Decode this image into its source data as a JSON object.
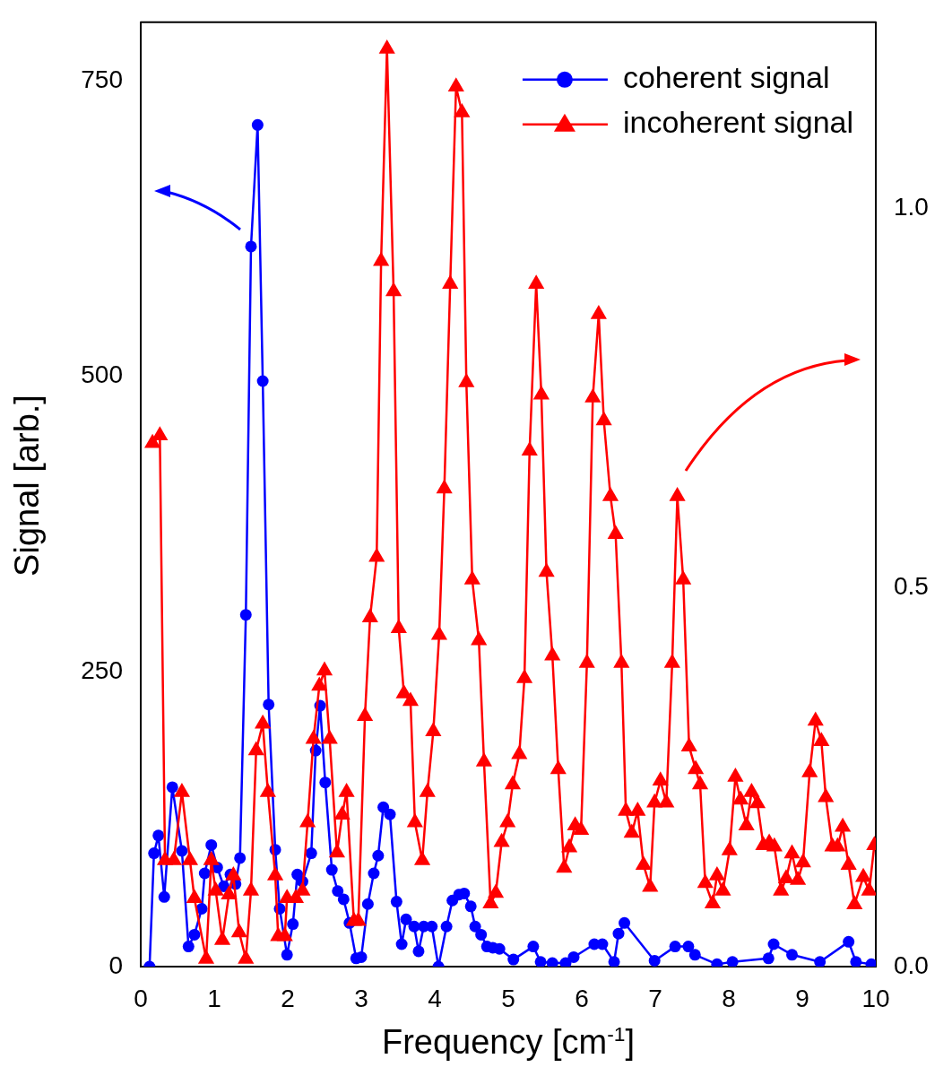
{
  "chart_data": {
    "type": "line",
    "xlabel": "Frequency [cm$^{-1}$]",
    "ylabel": "Signal [arb.]",
    "xlim": [
      0,
      10
    ],
    "xticks": [
      0,
      1,
      2,
      3,
      4,
      5,
      6,
      7,
      8,
      9,
      10
    ],
    "ylim": [
      0,
      800
    ],
    "yticks": [
      0,
      250,
      500,
      750
    ],
    "y2lim": [
      0,
      1.245
    ],
    "y2ticks": [
      {
        "value": 0,
        "label": "0.0"
      },
      {
        "value": 0.5,
        "label": "0.5"
      },
      {
        "value": 1,
        "label": "1.0"
      }
    ],
    "grid": false,
    "legend": "top right",
    "line_style": "solid",
    "series": [
      {
        "name": "coherent signal",
        "color": "#0000ff",
        "marker": "circle",
        "x": [
          0.12,
          0.18,
          0.24,
          0.32,
          0.43,
          0.56,
          0.65,
          0.73,
          0.83,
          0.87,
          0.96,
          1.04,
          1.13,
          1.22,
          1.29,
          1.35,
          1.43,
          1.5,
          1.59,
          1.66,
          1.74,
          1.83,
          1.89,
          1.99,
          2.07,
          2.13,
          2.2,
          2.32,
          2.38,
          2.44,
          2.51,
          2.6,
          2.68,
          2.76,
          2.84,
          2.93,
          3.0,
          3.09,
          3.17,
          3.23,
          3.3,
          3.39,
          3.48,
          3.55,
          3.61,
          3.72,
          3.78,
          3.85,
          3.96,
          4.05,
          4.16,
          4.24,
          4.33,
          4.4,
          4.49,
          4.55,
          4.63,
          4.71,
          4.79,
          4.88,
          5.07,
          5.34,
          5.44,
          5.6,
          5.78,
          5.89,
          6.17,
          6.28,
          6.44,
          6.5,
          6.58,
          6.99,
          7.27,
          7.45,
          7.54,
          7.84,
          8.05,
          8.54,
          8.61,
          8.86,
          9.24,
          9.63,
          9.73,
          9.94
        ],
        "values": [
          0,
          96,
          111,
          59,
          152,
          98,
          17,
          27,
          49,
          79,
          103,
          84,
          68,
          78,
          70,
          92,
          298,
          610,
          713,
          496,
          222,
          99,
          49,
          10,
          36,
          78,
          72,
          96,
          183,
          221,
          156,
          82,
          64,
          57,
          37,
          7,
          8,
          53,
          79,
          94,
          135,
          129,
          55,
          19,
          40,
          34,
          13,
          34,
          34,
          0,
          34,
          56,
          61,
          62,
          51,
          34,
          27,
          17,
          16,
          15,
          6,
          17,
          4,
          3,
          3,
          8,
          19,
          19,
          4,
          28,
          37,
          5,
          17,
          17,
          10,
          2,
          4,
          7,
          19,
          10,
          4,
          21,
          4,
          2
        ]
      },
      {
        "name": "incoherent signal",
        "color": "#ff0000",
        "marker": "triangle",
        "axis": "y2",
        "x": [
          0.16,
          0.26,
          0.33,
          0.45,
          0.56,
          0.67,
          0.73,
          0.89,
          0.96,
          1.02,
          1.11,
          1.2,
          1.26,
          1.34,
          1.43,
          1.5,
          1.57,
          1.66,
          1.73,
          1.83,
          1.87,
          1.96,
          1.99,
          2.11,
          2.2,
          2.27,
          2.35,
          2.43,
          2.5,
          2.57,
          2.67,
          2.74,
          2.8,
          2.9,
          2.96,
          3.05,
          3.12,
          3.21,
          3.27,
          3.35,
          3.44,
          3.51,
          3.58,
          3.67,
          3.73,
          3.83,
          3.9,
          3.98,
          4.06,
          4.13,
          4.21,
          4.29,
          4.37,
          4.43,
          4.51,
          4.6,
          4.67,
          4.76,
          4.83,
          4.91,
          4.99,
          5.06,
          5.15,
          5.22,
          5.29,
          5.38,
          5.45,
          5.52,
          5.6,
          5.68,
          5.76,
          5.83,
          5.91,
          5.99,
          6.07,
          6.15,
          6.23,
          6.3,
          6.39,
          6.46,
          6.54,
          6.6,
          6.68,
          6.76,
          6.84,
          6.93,
          6.99,
          7.07,
          7.15,
          7.23,
          7.3,
          7.38,
          7.46,
          7.55,
          7.61,
          7.68,
          7.78,
          7.84,
          7.92,
          8.01,
          8.09,
          8.16,
          8.24,
          8.31,
          8.39,
          8.47,
          8.55,
          8.62,
          8.71,
          8.78,
          8.86,
          8.94,
          9.01,
          9.1,
          9.18,
          9.26,
          9.32,
          9.41,
          9.48,
          9.55,
          9.63,
          9.71,
          9.83,
          9.91,
          9.98
        ],
        "values": [
          0.69,
          0.7,
          0.14,
          0.14,
          0.23,
          0.14,
          0.09,
          0.01,
          0.14,
          0.1,
          0.035,
          0.095,
          0.12,
          0.045,
          0.01,
          0.1,
          0.285,
          0.32,
          0.23,
          0.12,
          0.04,
          0.04,
          0.09,
          0.09,
          0.1,
          0.19,
          0.3,
          0.37,
          0.39,
          0.3,
          0.15,
          0.2,
          0.23,
          0.06,
          0.06,
          0.33,
          0.46,
          0.54,
          0.93,
          1.21,
          0.89,
          0.446,
          0.36,
          0.35,
          0.19,
          0.14,
          0.23,
          0.31,
          0.437,
          0.63,
          0.9,
          1.16,
          1.126,
          0.77,
          0.51,
          0.43,
          0.27,
          0.083,
          0.097,
          0.164,
          0.19,
          0.24,
          0.28,
          0.38,
          0.68,
          0.9,
          0.754,
          0.52,
          0.41,
          0.26,
          0.13,
          0.157,
          0.186,
          0.18,
          0.4,
          0.75,
          0.86,
          0.72,
          0.62,
          0.57,
          0.4,
          0.205,
          0.176,
          0.205,
          0.134,
          0.105,
          0.216,
          0.245,
          0.216,
          0.4,
          0.62,
          0.51,
          0.29,
          0.26,
          0.24,
          0.11,
          0.083,
          0.12,
          0.1,
          0.153,
          0.25,
          0.22,
          0.186,
          0.23,
          0.215,
          0.16,
          0.163,
          0.158,
          0.1,
          0.116,
          0.149,
          0.114,
          0.137,
          0.256,
          0.324,
          0.297,
          0.223,
          0.158,
          0.158,
          0.184,
          0.134,
          0.082,
          0.118,
          0.1,
          0.16
        ]
      }
    ]
  }
}
